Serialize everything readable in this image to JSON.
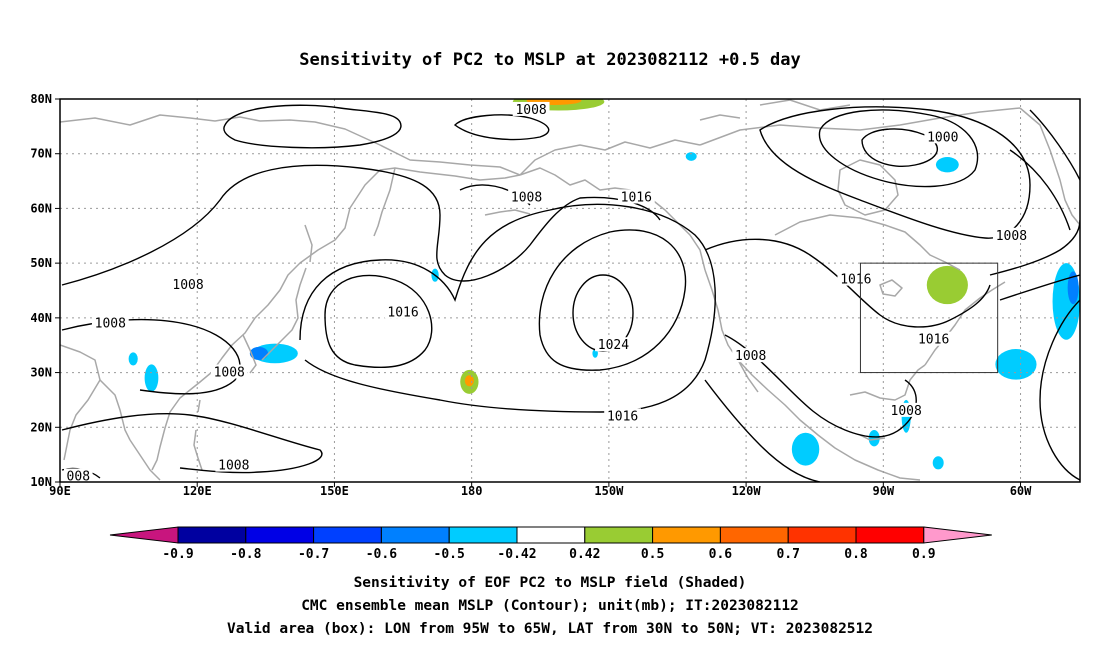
{
  "title": "Sensitivity of PC2 to MSLP at 2023082112 +0.5 day",
  "map": {
    "lat_ticks": [
      "80N",
      "70N",
      "60N",
      "50N",
      "40N",
      "30N",
      "20N",
      "10N"
    ],
    "lon_ticks": [
      "90E",
      "120E",
      "150E",
      "180",
      "150W",
      "120W",
      "90W",
      "60W"
    ],
    "domain": {
      "lon_min": 90,
      "lon_max": 313,
      "lat_min": 10,
      "lat_max": 80
    },
    "grid": "dotted",
    "contour_labels": [
      {
        "text": "1008",
        "lon": 193,
        "lat": 78
      },
      {
        "text": "1000",
        "lon": 283,
        "lat": 73
      },
      {
        "text": "1008",
        "lon": 192,
        "lat": 62
      },
      {
        "text": "1016",
        "lon": 216,
        "lat": 62
      },
      {
        "text": "1008",
        "lon": 298,
        "lat": 55
      },
      {
        "text": "1008",
        "lon": 118,
        "lat": 46
      },
      {
        "text": "1016",
        "lon": 264,
        "lat": 47
      },
      {
        "text": "1016",
        "lon": 165,
        "lat": 41
      },
      {
        "text": "1008",
        "lon": 101,
        "lat": 39
      },
      {
        "text": "1016",
        "lon": 281,
        "lat": 36
      },
      {
        "text": "1024",
        "lon": 211,
        "lat": 35
      },
      {
        "text": "1008",
        "lon": 241,
        "lat": 33
      },
      {
        "text": "1008",
        "lon": 127,
        "lat": 30
      },
      {
        "text": "1016",
        "lon": 213,
        "lat": 22
      },
      {
        "text": "1008",
        "lon": 275,
        "lat": 23
      },
      {
        "text": "1008",
        "lon": 128,
        "lat": 13
      },
      {
        "text": "008",
        "lon": 94,
        "lat": 11
      }
    ],
    "valid_box": {
      "lon_west": 265,
      "lon_east": 295,
      "lat_south": 30,
      "lat_north": 50
    },
    "shaded_regions": [
      {
        "value": 0.5,
        "color": "#99cc33",
        "lon": 199,
        "lat": 79.5,
        "rx": 10,
        "ry": 1.6
      },
      {
        "value": 0.6,
        "color": "#ff9900",
        "lon": 198,
        "lat": 79.7,
        "rx": 6,
        "ry": 0.8
      },
      {
        "value": 0.5,
        "color": "#99cc33",
        "lon": 284,
        "lat": 46,
        "rx": 4.5,
        "ry": 3.5
      },
      {
        "value": 0.5,
        "color": "#99cc33",
        "lon": 179.5,
        "lat": 28.3,
        "rx": 2,
        "ry": 2.2
      },
      {
        "value": 0.6,
        "color": "#ff9900",
        "lon": 179.5,
        "lat": 28.5,
        "rx": 1,
        "ry": 1
      },
      {
        "value": -0.5,
        "color": "#00ccff",
        "lon": 284,
        "lat": 68,
        "rx": 2.5,
        "ry": 1.4
      },
      {
        "value": -0.5,
        "color": "#00ccff",
        "lon": 228,
        "lat": 69.5,
        "rx": 1.2,
        "ry": 0.8
      },
      {
        "value": -0.5,
        "color": "#00ccff",
        "lon": 172,
        "lat": 47.8,
        "rx": 0.8,
        "ry": 1.2
      },
      {
        "value": -0.5,
        "color": "#00ccff",
        "lon": 299,
        "lat": 31.5,
        "rx": 4.5,
        "ry": 2.8
      },
      {
        "value": -0.5,
        "color": "#00ccff",
        "lon": 310,
        "lat": 43,
        "rx": 3,
        "ry": 7
      },
      {
        "value": -0.6,
        "color": "#0080ff",
        "lon": 311.5,
        "lat": 45.5,
        "rx": 1.2,
        "ry": 3
      },
      {
        "value": -0.5,
        "color": "#00ccff",
        "lon": 137,
        "lat": 33.5,
        "rx": 5,
        "ry": 1.8
      },
      {
        "value": -0.6,
        "color": "#0080ff",
        "lon": 133.5,
        "lat": 33.5,
        "rx": 2,
        "ry": 1.2
      },
      {
        "value": -0.5,
        "color": "#00ccff",
        "lon": 110,
        "lat": 29,
        "rx": 1.5,
        "ry": 2.5
      },
      {
        "value": -0.5,
        "color": "#00ccff",
        "lon": 106,
        "lat": 32.5,
        "rx": 1,
        "ry": 1.2
      },
      {
        "value": -0.5,
        "color": "#00ccff",
        "lon": 275,
        "lat": 22,
        "rx": 1,
        "ry": 3
      },
      {
        "value": -0.5,
        "color": "#00ccff",
        "lon": 282,
        "lat": 13.5,
        "rx": 1.2,
        "ry": 1.2
      },
      {
        "value": -0.5,
        "color": "#00ccff",
        "lon": 268,
        "lat": 18,
        "rx": 1.2,
        "ry": 1.5
      },
      {
        "value": -0.5,
        "color": "#00ccff",
        "lon": 253,
        "lat": 16,
        "rx": 3,
        "ry": 3
      },
      {
        "value": -0.5,
        "color": "#00ccff",
        "lon": 207,
        "lat": 33.5,
        "rx": 0.6,
        "ry": 0.8
      }
    ]
  },
  "colorbar": {
    "labels": [
      "-0.9",
      "-0.8",
      "-0.7",
      "-0.6",
      "-0.5",
      "-0.42",
      "0.42",
      "0.5",
      "0.6",
      "0.7",
      "0.8",
      "0.9"
    ],
    "colors": [
      "#c8157e",
      "#0000a0",
      "#0000e6",
      "#0040ff",
      "#0080ff",
      "#00ccff",
      "#ffffff",
      "#99cc33",
      "#ff9900",
      "#ff6600",
      "#ff3300",
      "#ff0000",
      "#ff99cc"
    ]
  },
  "captions": {
    "line1": "Sensitivity of EOF PC2 to MSLP field (Shaded)",
    "line2": "CMC ensemble mean MSLP (Contour); unit(mb); IT:2023082112",
    "line3": "Valid area (box): LON from 95W to 65W, LAT from 30N to 50N; VT: 2023082512"
  }
}
